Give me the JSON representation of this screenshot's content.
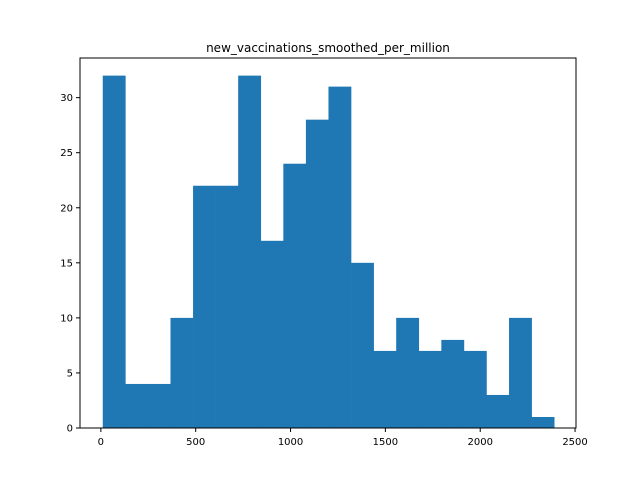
{
  "chart_data": {
    "type": "bar",
    "title": "new_vaccinations_smoothed_per_million",
    "xlabel": "",
    "ylabel": "",
    "xlim": [
      -110,
      2505
    ],
    "ylim": [
      0,
      33.6
    ],
    "x_ticks": [
      0,
      500,
      1000,
      1500,
      2000,
      2500
    ],
    "x_tick_labels": [
      "0",
      "500",
      "1000",
      "1500",
      "2000",
      "2500"
    ],
    "y_ticks": [
      0,
      5,
      10,
      15,
      20,
      25,
      30
    ],
    "y_tick_labels": [
      "0",
      "5",
      "10",
      "15",
      "20",
      "25",
      "30"
    ],
    "bin_edges": [
      10,
      129,
      248,
      367,
      486,
      605,
      724,
      843,
      962,
      1081,
      1200,
      1319,
      1438,
      1557,
      1676,
      1795,
      1914,
      2033,
      2152,
      2271,
      2390
    ],
    "counts": [
      32,
      4,
      4,
      10,
      22,
      22,
      32,
      17,
      24,
      28,
      31,
      15,
      7,
      10,
      7,
      8,
      7,
      3,
      10,
      1
    ],
    "bar_color": "#1f77b4",
    "grid": false,
    "legend": "none"
  }
}
